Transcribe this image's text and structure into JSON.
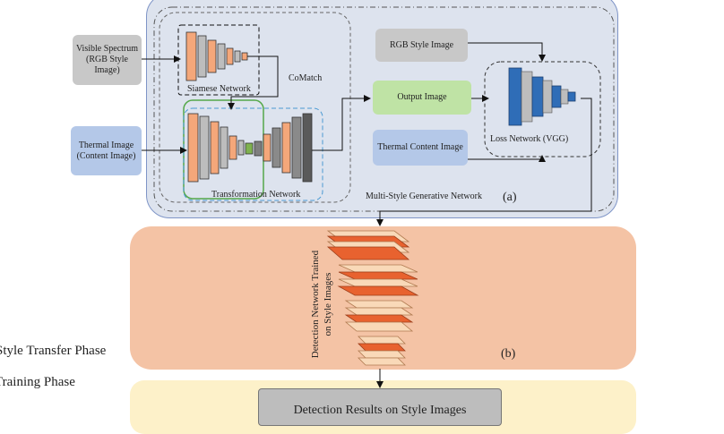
{
  "panel_a": {
    "visible_spectrum": "Visible Spectrum (RGB Style Image)",
    "thermal_image": "Thermal Image (Content Image)",
    "siamese_network": "Siamese Network",
    "comatch": "CoMatch",
    "transformation_network": "Transformation Network",
    "rgb_style_image": "RGB Style Image",
    "output_image": "Output Image",
    "thermal_content_image": "Thermal Content Image",
    "loss_network": "Loss Network (VGG)",
    "generative_network": "Multi-Style Generative Network",
    "tag": "(a)"
  },
  "panel_b": {
    "detection_label_line1": "Detection Network Trained",
    "detection_label_line2": "on Style Images",
    "tag": "(b)"
  },
  "panel_c": {
    "box_text": "Detection Results on Style Images"
  },
  "side_labels": {
    "style_transfer": "Style Transfer Phase",
    "training": "Training Phase"
  },
  "colors": {
    "panel_a_fill": "#dde3ee",
    "panel_b_fill": "#f4c3a5",
    "panel_c_fill": "#fdf1c9",
    "gray_box": "#c8c8c8",
    "green_box": "#bfe3a5",
    "blue_box": "#b4c8e8",
    "orange_layer": "#f4a77a",
    "loss_blue": "#2f6db7"
  }
}
